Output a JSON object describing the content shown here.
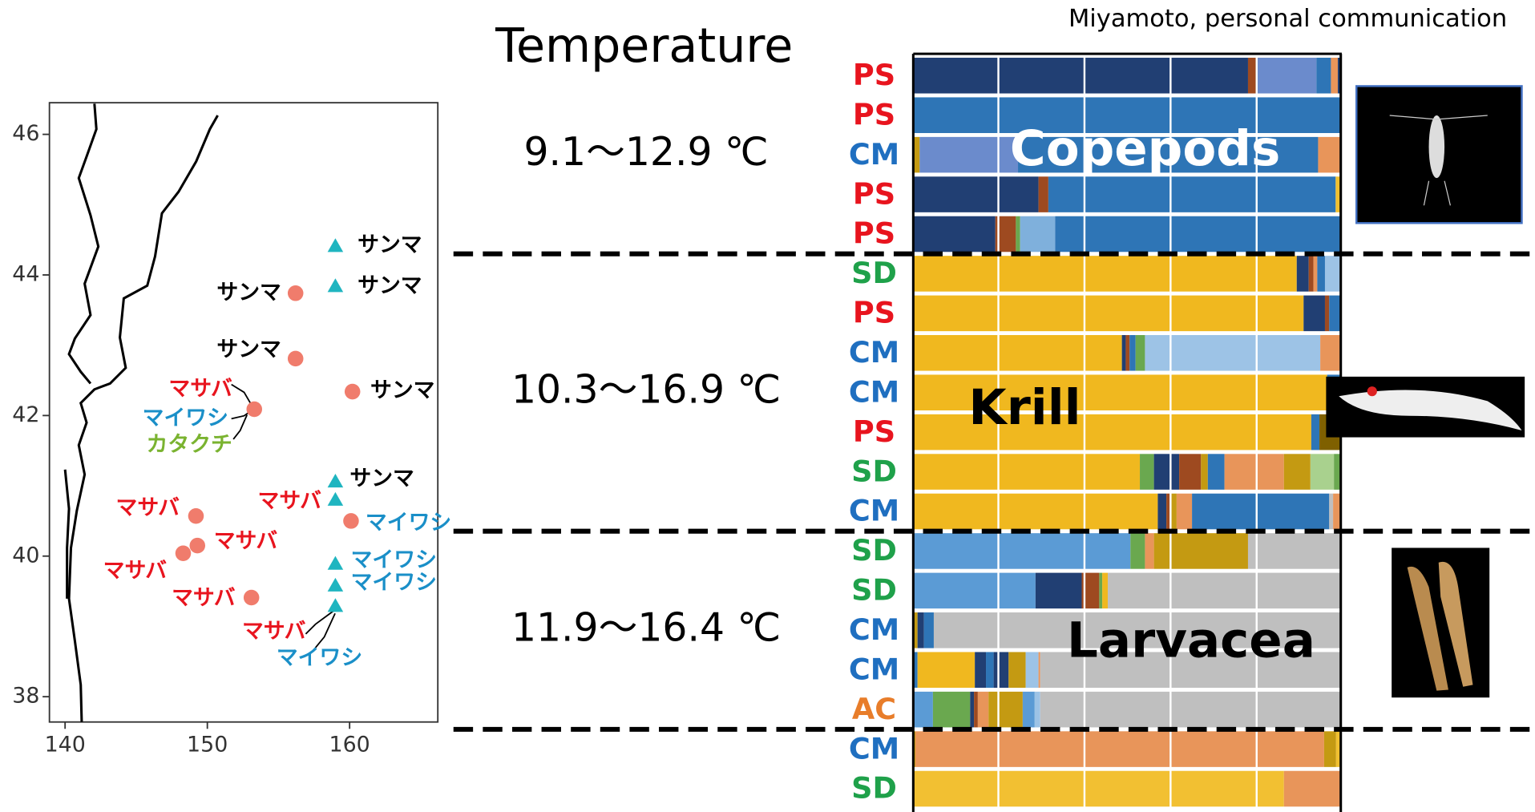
{
  "chart_data": [
    {
      "type": "scatter",
      "xlim": [
        138.9,
        166.2
      ],
      "ylim": [
        37.64,
        46.45
      ],
      "xticks": [
        140,
        150,
        160
      ],
      "yticks": [
        38,
        40,
        42,
        44,
        46
      ],
      "points": [
        {
          "x": 159,
          "y": 44.41,
          "shape": "triangle",
          "color": "#1fb5c0",
          "labels": [
            {
              "text": "サンマ",
              "color": "#000000"
            }
          ]
        },
        {
          "x": 159,
          "y": 43.84,
          "shape": "triangle",
          "color": "#1fb5c0",
          "labels": [
            {
              "text": "サンマ",
              "color": "#000000"
            }
          ]
        },
        {
          "x": 156.2,
          "y": 43.74,
          "shape": "circle",
          "color": "#f07c6c",
          "labels": [
            {
              "text": "サンマ",
              "color": "#000000"
            }
          ]
        },
        {
          "x": 156.2,
          "y": 42.81,
          "shape": "circle",
          "color": "#f07c6c",
          "labels": [
            {
              "text": "サンマ",
              "color": "#000000"
            }
          ]
        },
        {
          "x": 160.2,
          "y": 42.34,
          "shape": "circle",
          "color": "#f07c6c",
          "labels": [
            {
              "text": "サンマ",
              "color": "#000000"
            }
          ]
        },
        {
          "x": 153.3,
          "y": 42.09,
          "shape": "circle",
          "color": "#f07c6c",
          "labels": [
            {
              "text": "マサバ",
              "color": "#e8141e"
            },
            {
              "text": "マイワシ",
              "color": "#1a8fc8"
            },
            {
              "text": "カタクチ",
              "color": "#7ab330"
            }
          ]
        },
        {
          "x": 159,
          "y": 41.06,
          "shape": "triangle",
          "color": "#1fb5c0",
          "labels": [
            {
              "text": "サンマ",
              "color": "#000000"
            }
          ]
        },
        {
          "x": 159,
          "y": 40.8,
          "shape": "triangle",
          "color": "#1fb5c0",
          "labels": [
            {
              "text": "マサバ",
              "color": "#e8141e"
            }
          ]
        },
        {
          "x": 160.1,
          "y": 40.5,
          "shape": "circle",
          "color": "#f07c6c",
          "labels": [
            {
              "text": "マイワシ",
              "color": "#1a8fc8"
            }
          ]
        },
        {
          "x": 149.2,
          "y": 40.57,
          "shape": "circle",
          "color": "#f07c6c",
          "labels": [
            {
              "text": "マサバ",
              "color": "#e8141e"
            }
          ]
        },
        {
          "x": 149.3,
          "y": 40.15,
          "shape": "circle",
          "color": "#f07c6c",
          "labels": [
            {
              "text": "マサバ",
              "color": "#e8141e"
            }
          ]
        },
        {
          "x": 148.3,
          "y": 40.04,
          "shape": "circle",
          "color": "#f07c6c",
          "labels": [
            {
              "text": "マサバ",
              "color": "#e8141e"
            }
          ]
        },
        {
          "x": 153.1,
          "y": 39.41,
          "shape": "circle",
          "color": "#f07c6c",
          "labels": [
            {
              "text": "マサバ",
              "color": "#e8141e"
            }
          ]
        },
        {
          "x": 159,
          "y": 39.89,
          "shape": "triangle",
          "color": "#1fb5c0",
          "labels": [
            {
              "text": "マイワシ",
              "color": "#1a8fc8"
            }
          ]
        },
        {
          "x": 159,
          "y": 39.58,
          "shape": "triangle",
          "color": "#1fb5c0",
          "labels": [
            {
              "text": "マイワシ",
              "color": "#1a8fc8"
            }
          ]
        },
        {
          "x": 159,
          "y": 39.29,
          "shape": "triangle",
          "color": "#1fb5c0",
          "labels": [
            {
              "text": "マサバ",
              "color": "#e8141e"
            },
            {
              "text": "マイワシ",
              "color": "#1a8fc8"
            }
          ]
        }
      ]
    },
    {
      "type": "stacked-bar",
      "header": "Temperature",
      "credit": "Miyamoto, personal communication",
      "groups": [
        {
          "name": "Copepods",
          "temperature": "9.1～12.9 ℃",
          "rows": [
            {
              "label": "PS",
              "label_color": "#e8141e",
              "values": [
                78.3,
                2,
                14,
                3.4,
                1.6,
                0.7
              ],
              "colors": [
                "#213f73",
                "#9e4a20",
                "#6b8bcc",
                "#2e75b6",
                "#e8955a",
                "#213f73"
              ]
            },
            {
              "label": "PS",
              "label_color": "#e8141e",
              "values": [
                100
              ],
              "colors": [
                "#2e75b6"
              ]
            },
            {
              "label": "CM",
              "label_color": "#1f6fc0",
              "values": [
                1.5,
                23,
                70.2,
                5.3
              ],
              "colors": [
                "#c49a12",
                "#6b8bcc",
                "#2e75b6",
                "#e8955a"
              ]
            },
            {
              "label": "PS",
              "label_color": "#e8141e",
              "values": [
                29.3,
                2.3,
                67.2,
                1.2
              ],
              "colors": [
                "#213f73",
                "#9e4a20",
                "#2e75b6",
                "#f0c030"
              ]
            },
            {
              "label": "PS",
              "label_color": "#e8141e",
              "values": [
                19.2,
                4.8,
                1,
                8.2,
                66.8
              ],
              "colors": [
                "#213f73",
                "#9e4a20",
                "#6aa84f",
                "#7fb0dc",
                "#2e75b6"
              ]
            }
          ]
        },
        {
          "name": "Krill",
          "temperature": "10.3～16.9 ℃",
          "rows": [
            {
              "label": "SD",
              "label_color": "#1fa14a",
              "values": [
                89.7,
                2.8,
                1.1,
                0.9,
                1.8,
                3.7
              ],
              "colors": [
                "#f0b81f",
                "#213f73",
                "#9e4a20",
                "#e8955a",
                "#2e75b6",
                "#9dc3e6"
              ]
            },
            {
              "label": "PS",
              "label_color": "#e8141e",
              "values": [
                91.3,
                5,
                1,
                2.7
              ],
              "colors": [
                "#f0b81f",
                "#213f73",
                "#9e4a20",
                "#2e75b6"
              ]
            },
            {
              "label": "CM",
              "label_color": "#1f6fc0",
              "values": [
                48.8,
                0.9,
                0.9,
                1.4,
                2.2,
                41,
                4.8
              ],
              "colors": [
                "#f0b81f",
                "#213f73",
                "#9e4a20",
                "#2e75b6",
                "#6aa84f",
                "#9dc3e6",
                "#e8955a"
              ]
            },
            {
              "label": "CM",
              "label_color": "#1f6fc0",
              "values": [
                96.8,
                3.2
              ],
              "colors": [
                "#f0b81f",
                "#2e75b6"
              ]
            },
            {
              "label": "PS",
              "label_color": "#e8141e",
              "values": [
                93.1,
                1.9,
                5
              ],
              "colors": [
                "#f0b81f",
                "#2e75b6",
                "#7f6000"
              ]
            },
            {
              "label": "SD",
              "label_color": "#1fa14a",
              "values": [
                53,
                3.3,
                5.9,
                5.1,
                1.6,
                3.9,
                13.9,
                6.2,
                5.5,
                1.6
              ],
              "colors": [
                "#f0b81f",
                "#6aa84f",
                "#213f73",
                "#9e4a20",
                "#c49a12",
                "#2e75b6",
                "#e8955a",
                "#c49a12",
                "#a9d18e",
                "#6aa84f"
              ]
            },
            {
              "label": "CM",
              "label_color": "#1f6fc0",
              "values": [
                57.2,
                2,
                0.8,
                1.6,
                3.6,
                32.1,
                0.9,
                1.8
              ],
              "colors": [
                "#f0b81f",
                "#213f73",
                "#9e4a20",
                "#c49a12",
                "#e8955a",
                "#2e75b6",
                "#bfbfbf",
                "#e8955a"
              ]
            }
          ]
        },
        {
          "name": "Larvacea",
          "temperature": "11.9～16.4 ℃",
          "rows": [
            {
              "label": "SD",
              "label_color": "#1fa14a",
              "values": [
                50.8,
                3.4,
                2.1,
                22,
                21.7
              ],
              "colors": [
                "#5b9bd5",
                "#6aa84f",
                "#e8955a",
                "#c49a12",
                "#bfbfbf"
              ]
            },
            {
              "label": "SD",
              "label_color": "#1fa14a",
              "values": [
                28.6,
                10.8,
                4.1,
                0.7,
                1.3,
                54.5
              ],
              "colors": [
                "#5b9bd5",
                "#213f73",
                "#9e4a20",
                "#6aa84f",
                "#f0b81f",
                "#bfbfbf"
              ]
            },
            {
              "label": "CM",
              "label_color": "#1f6fc0",
              "values": [
                1,
                1.5,
                2.3,
                95.2
              ],
              "colors": [
                "#c49a12",
                "#213f73",
                "#2e75b6",
                "#bfbfbf"
              ]
            },
            {
              "label": "CM",
              "label_color": "#1f6fc0",
              "values": [
                1,
                13.4,
                2.6,
                1.8,
                3.5,
                4,
                3,
                0.4,
                70.3
              ],
              "colors": [
                "#2e75b6",
                "#f0b81f",
                "#213f73",
                "#2e75b6",
                "#213f73",
                "#c49a12",
                "#9dc3e6",
                "#e8955a",
                "#bfbfbf"
              ]
            },
            {
              "label": "AC",
              "label_color": "#e87d2a",
              "values": [
                4.6,
                8.7,
                0.9,
                0.9,
                2.5,
                8,
                2.8,
                1.3,
                70.3
              ],
              "colors": [
                "#5b9bd5",
                "#6aa84f",
                "#213f73",
                "#9e4a20",
                "#e8955a",
                "#c49a12",
                "#5b9bd5",
                "#9dc3e6",
                "#bfbfbf"
              ]
            }
          ]
        },
        {
          "rows": [
            {
              "label": "CM",
              "label_color": "#1f6fc0",
              "values": [
                0.5,
                95.6,
                2.8,
                1.1
              ],
              "colors": [
                "#c49a12",
                "#e8955a",
                "#c49a12",
                "#f0c030"
              ]
            },
            {
              "label": "SD",
              "label_color": "#1fa14a",
              "values": [
                86.7,
                13.3
              ],
              "colors": [
                "#f2c032",
                "#e8955a"
              ]
            }
          ]
        }
      ]
    }
  ]
}
